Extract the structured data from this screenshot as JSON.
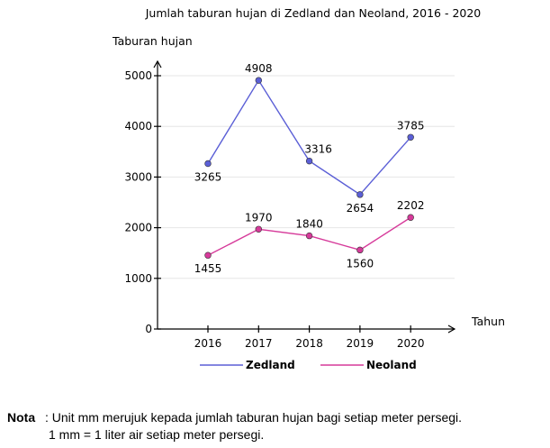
{
  "chart_data": {
    "type": "line",
    "title": "Jumlah taburan hujan di Zedland dan Neoland, 2016 - 2020",
    "xlabel": "Tahun",
    "ylabel": "Taburan hujan",
    "categories": [
      "2016",
      "2017",
      "2018",
      "2019",
      "2020"
    ],
    "yticks": [
      "0",
      "1000",
      "2000",
      "3000",
      "4000",
      "5000"
    ],
    "ylim": [
      0,
      5700
    ],
    "grid": true,
    "legend_position": "bottom",
    "series": [
      {
        "name": "Zedland",
        "color": "#5b5fd6",
        "values": [
          3265,
          4908,
          3316,
          2654,
          3785
        ],
        "labels": [
          "3265",
          "4908",
          "3316",
          "2654",
          "3785"
        ]
      },
      {
        "name": "Neoland",
        "color": "#d63a9a",
        "values": [
          1455,
          1970,
          1840,
          1560,
          2202
        ],
        "labels": [
          "1455",
          "1970",
          "1840",
          "1560",
          "2202"
        ]
      }
    ]
  },
  "note": {
    "label": "Nota",
    "line1": "Unit mm merujuk kepada jumlah taburan hujan bagi setiap meter persegi.",
    "line2": "1 mm = 1 liter air setiap meter persegi."
  }
}
